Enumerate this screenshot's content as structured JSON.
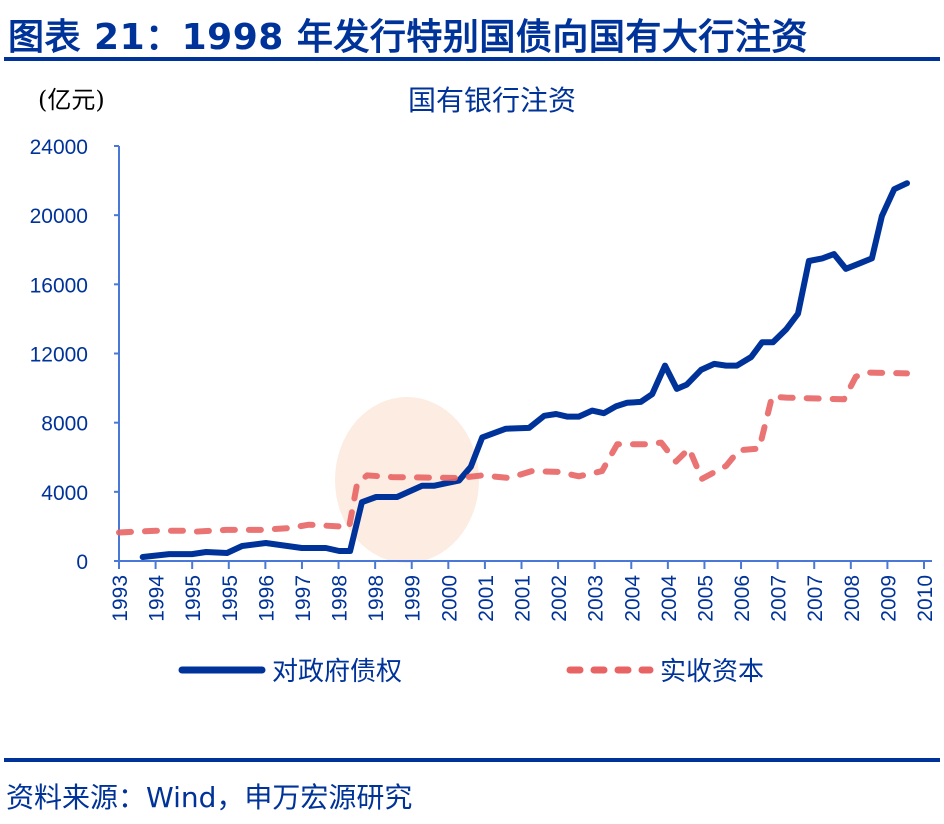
{
  "header": {
    "title": "图表 21：1998 年发行特别国债向国有大行注资"
  },
  "footer": {
    "source": "资料来源：Wind，申万宏源研究"
  },
  "colors": {
    "title": "#003399",
    "series_debt": "#003399",
    "series_capital": "#e86464",
    "axis": "#4a78d8",
    "highlight": "#fbe9dd"
  },
  "chart_data": {
    "type": "line",
    "title": "国有银行注资",
    "ylabel": "(亿元)",
    "ylim": [
      0,
      24000
    ],
    "yticks": [
      "0",
      "4000",
      "8000",
      "12000",
      "16000",
      "20000",
      "24000"
    ],
    "xlim": [
      1993,
      2010
    ],
    "xticks": [
      "1993",
      "1994",
      "1995",
      "1995",
      "1996",
      "1997",
      "1998",
      "1998",
      "1999",
      "2000",
      "2001",
      "2001",
      "2002",
      "2003",
      "2004",
      "2004",
      "2005",
      "2006",
      "2007",
      "2007",
      "2008",
      "2009",
      "2010"
    ],
    "grid": false,
    "legend_position": "bottom",
    "highlight": "ellipse around 1998",
    "series": [
      {
        "name": "对政府债权",
        "style": "solid",
        "x": [
          1993.5,
          1994.06,
          1994.54,
          1994.84,
          1995.28,
          1995.6,
          1996.1,
          1996.86,
          1997.37,
          1997.65,
          1997.88,
          1998.13,
          1998.43,
          1998.87,
          1999.4,
          1999.65,
          1999.91,
          2000.18,
          2000.43,
          2000.67,
          2001.17,
          2001.66,
          2001.98,
          2002.23,
          2002.46,
          2002.71,
          2002.99,
          2003.24,
          2003.5,
          2003.73,
          2004.02,
          2004.26,
          2004.53,
          2004.78,
          2004.99,
          2005.29,
          2005.57,
          2005.82,
          2006.05,
          2006.35,
          2006.58,
          2006.81,
          2007.09,
          2007.34,
          2007.57,
          2007.85,
          2008.1,
          2008.35,
          2008.63,
          2008.9,
          2009.11,
          2009.37,
          2009.64
        ],
        "values": [
          230,
          400,
          400,
          520,
          460,
          870,
          1040,
          750,
          750,
          580,
          580,
          3400,
          3700,
          3700,
          4350,
          4350,
          4500,
          4650,
          5450,
          7150,
          7650,
          7700,
          8400,
          8500,
          8350,
          8350,
          8700,
          8550,
          8950,
          9150,
          9200,
          9650,
          11300,
          9950,
          10200,
          11050,
          11400,
          11300,
          11300,
          11800,
          12650,
          12650,
          13400,
          14300,
          17350,
          17500,
          17750,
          16900,
          17200,
          17500,
          19950,
          21500,
          21850
        ]
      },
      {
        "name": "实收资本",
        "style": "dashed",
        "x": [
          1993.0,
          1993.78,
          1994.33,
          1994.63,
          1995.26,
          1996.02,
          1996.59,
          1997.01,
          1997.65,
          1997.86,
          1998.03,
          1998.24,
          1998.77,
          2000.18,
          2000.67,
          2001.24,
          2001.72,
          2002.29,
          2002.71,
          2003.2,
          2003.52,
          2004.13,
          2004.45,
          2004.76,
          2005.04,
          2005.31,
          2005.82,
          2006.09,
          2006.52,
          2006.79,
          2007.09,
          2008.31,
          2008.56,
          2008.77,
          2009.64
        ],
        "values": [
          1650,
          1750,
          1750,
          1700,
          1800,
          1800,
          1900,
          2100,
          2000,
          1950,
          4500,
          4950,
          4850,
          4800,
          4950,
          4800,
          5200,
          5150,
          4900,
          5200,
          6750,
          6750,
          6850,
          5750,
          6500,
          4750,
          5500,
          6400,
          6500,
          9500,
          9450,
          9350,
          10650,
          10900,
          10850
        ]
      }
    ]
  }
}
